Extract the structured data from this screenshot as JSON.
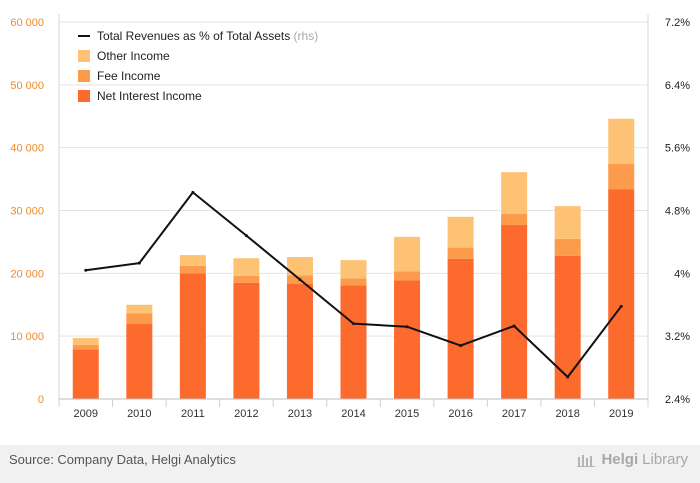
{
  "chart_data": {
    "type": "bar+line",
    "categories": [
      "2009",
      "2010",
      "2011",
      "2012",
      "2013",
      "2014",
      "2015",
      "2016",
      "2017",
      "2018",
      "2019"
    ],
    "series": [
      {
        "name": "Net Interest Income",
        "type": "stacked-bar",
        "axis": "left",
        "color": "#fd6a2d",
        "values": [
          7900,
          12000,
          20000,
          18500,
          18300,
          18100,
          18900,
          22300,
          27700,
          22800,
          33400
        ]
      },
      {
        "name": "Fee Income",
        "type": "stacked-bar",
        "axis": "left",
        "color": "#fc9b4c",
        "values": [
          700,
          1600,
          1200,
          1100,
          1400,
          1100,
          1400,
          1800,
          1800,
          2700,
          4000
        ]
      },
      {
        "name": "Other Income",
        "type": "stacked-bar",
        "axis": "left",
        "color": "#fec274",
        "values": [
          1100,
          1400,
          1700,
          2800,
          2900,
          2900,
          5500,
          4900,
          6600,
          5200,
          7200
        ]
      },
      {
        "name": "Total Revenues as % of Total Assets",
        "type": "line",
        "axis": "right",
        "color": "#111111",
        "values": [
          4.04,
          4.13,
          5.03,
          4.48,
          3.92,
          3.36,
          3.32,
          3.08,
          3.33,
          2.68,
          3.58
        ]
      }
    ],
    "left_axis": {
      "min": 0,
      "max": 60000,
      "ticks": [
        0,
        10000,
        20000,
        30000,
        40000,
        50000,
        60000
      ],
      "tick_labels": [
        "0",
        "10 000",
        "20 000",
        "30 000",
        "40 000",
        "50 000",
        "60 000"
      ],
      "color": "#f08a2c"
    },
    "right_axis": {
      "min": 2.4,
      "max": 7.2,
      "ticks": [
        2.4,
        3.2,
        4,
        4.8,
        5.6,
        6.4,
        7.2
      ],
      "tick_labels": [
        "2.4%",
        "3.2%",
        "4%",
        "4.8%",
        "5.6%",
        "6.4%",
        "7.2%"
      ]
    },
    "legend": {
      "position": "top-left",
      "items": [
        {
          "label": "Total Revenues as % of Total Assets",
          "suffix": "(rhs)",
          "kind": "line",
          "color": "#111111"
        },
        {
          "label": "Other Income",
          "kind": "box",
          "color": "#fec274"
        },
        {
          "label": "Fee Income",
          "kind": "box",
          "color": "#fc9b4c"
        },
        {
          "label": "Net Interest Income",
          "kind": "box",
          "color": "#fd6a2d"
        }
      ]
    },
    "grid": true
  },
  "footer": {
    "source": "Source: Company Data, Helgi Analytics",
    "brand_prefix": "Helgi",
    "brand_suffix": "Library"
  }
}
